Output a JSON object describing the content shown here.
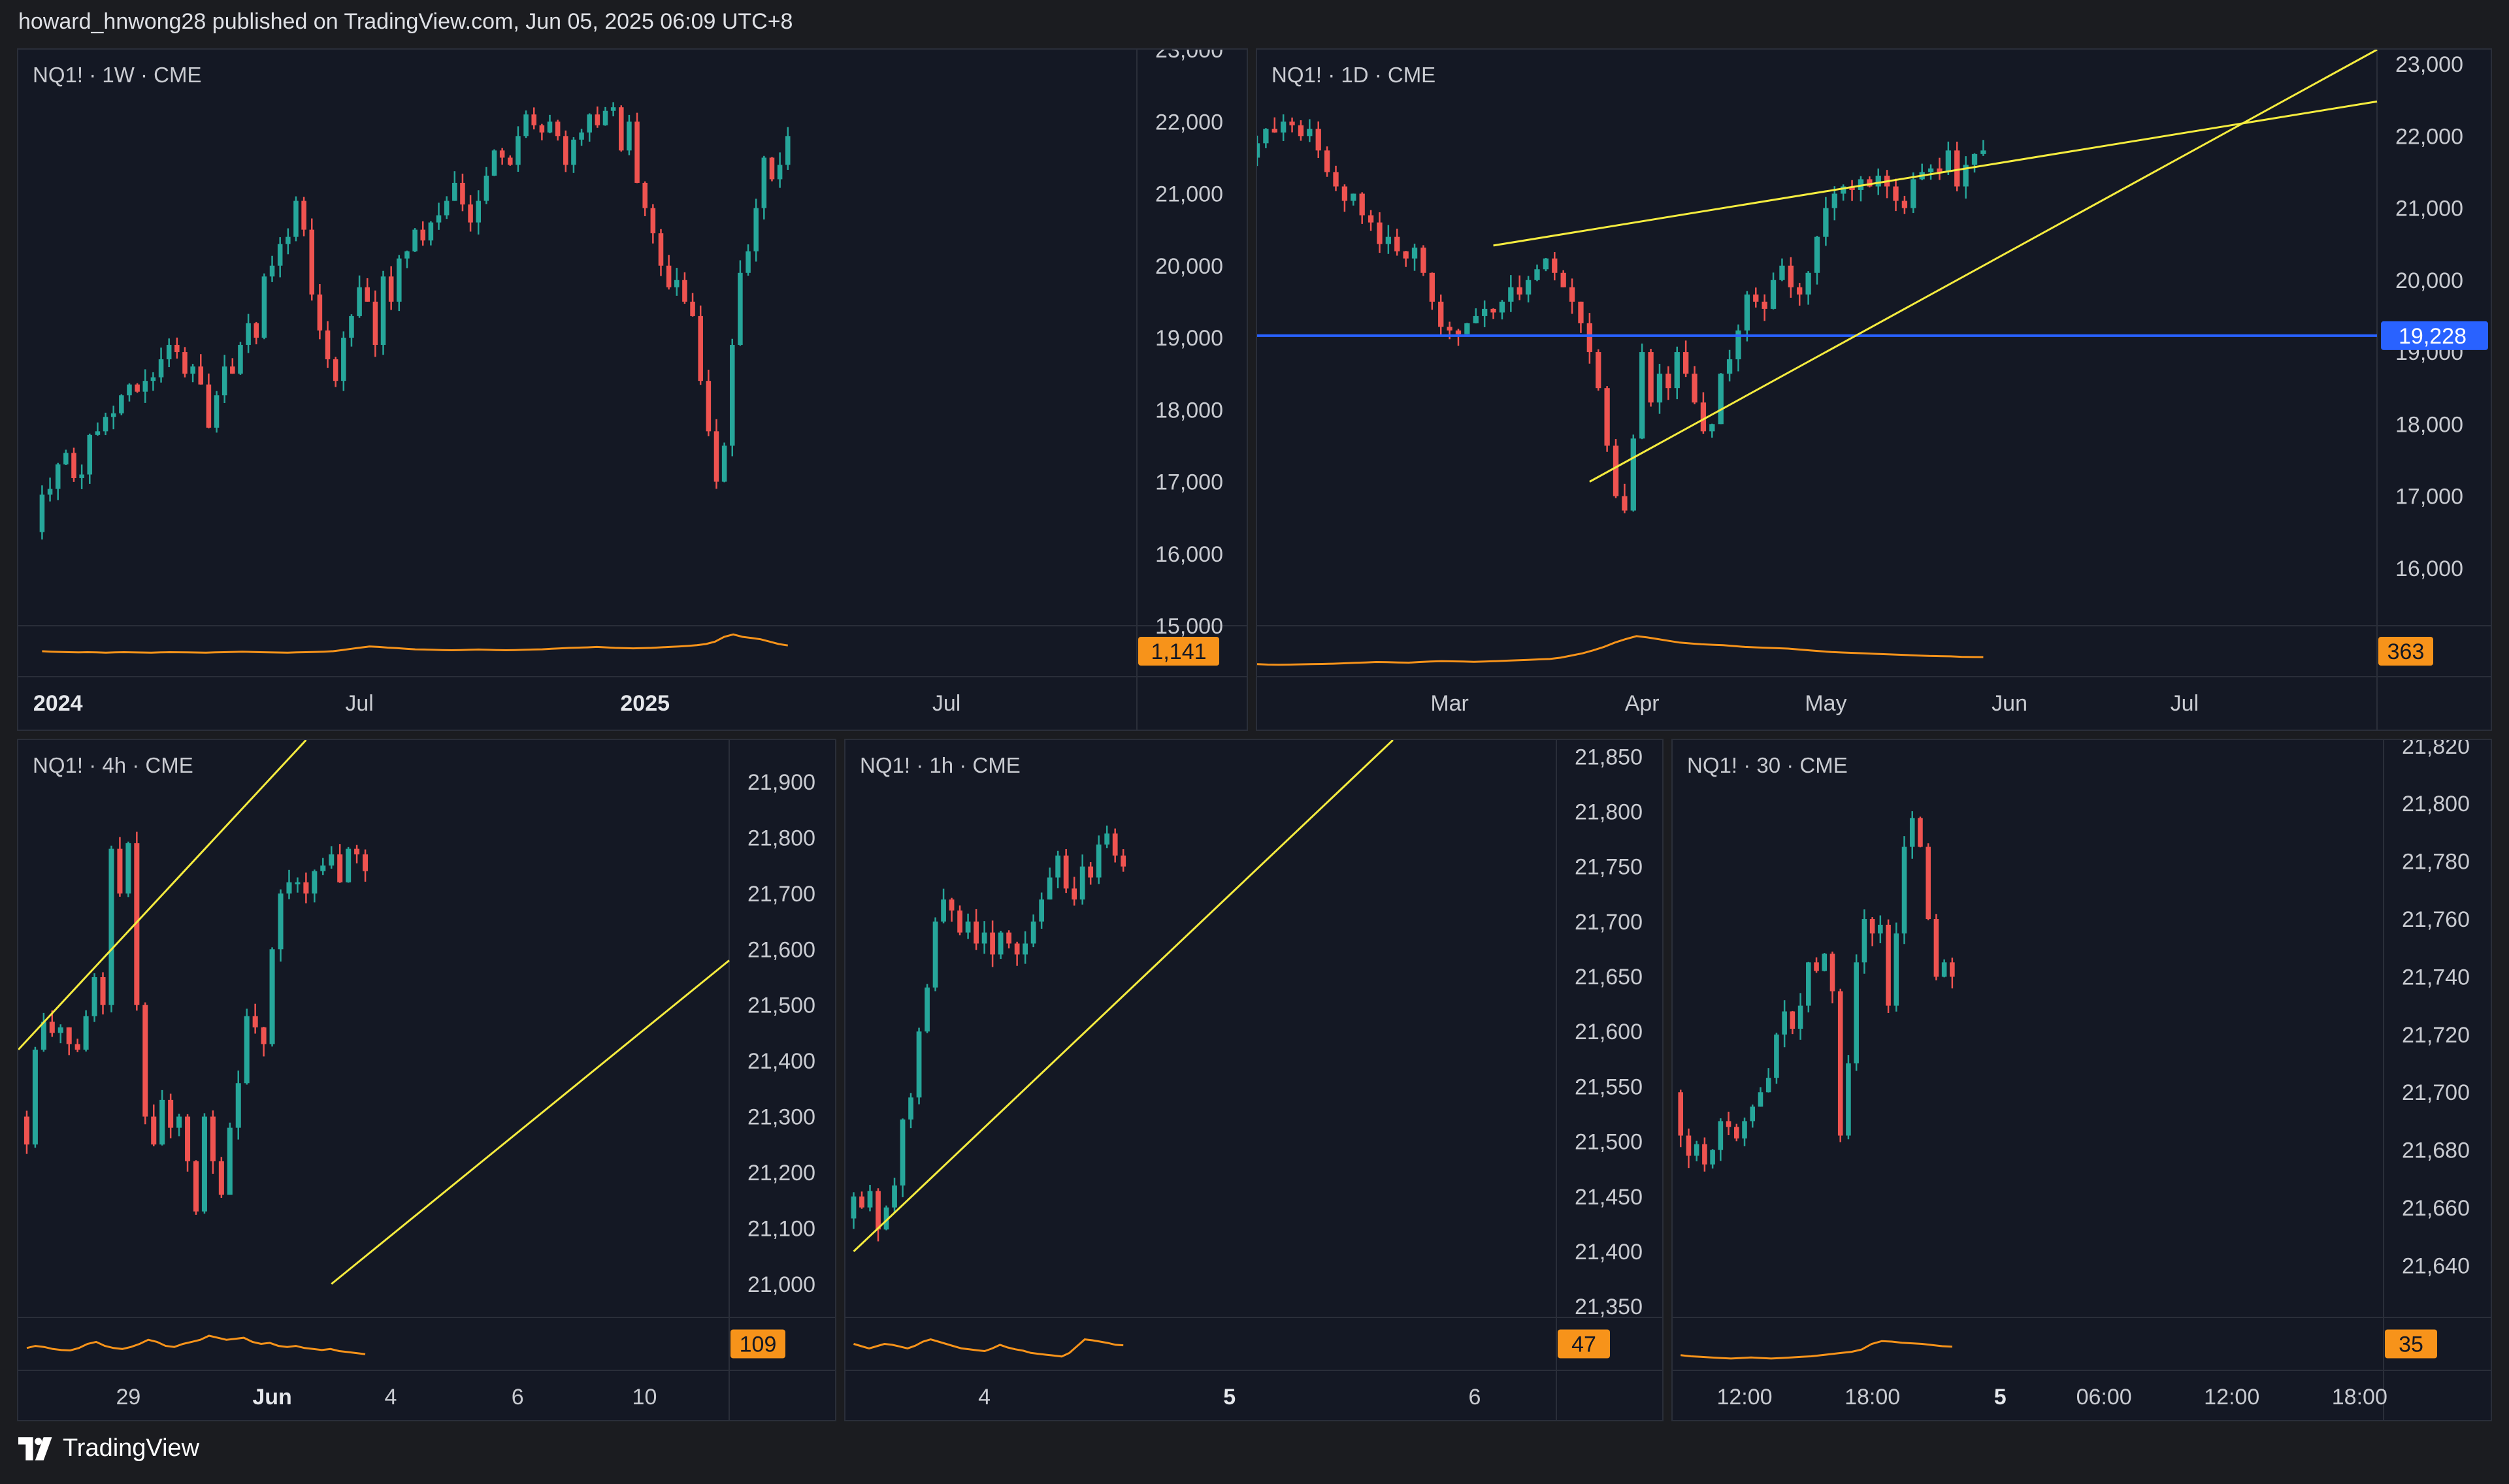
{
  "header": {
    "text": "howard_hnwong28 published on TradingView.com, Jun 05, 2025 06:09 UTC+8"
  },
  "footer": {
    "brand": "TradingView"
  },
  "colors": {
    "up": "#26a69a",
    "down": "#ef5350",
    "trendline": "#f5ec3f",
    "level": "#2962ff",
    "oscillator": "#f7931a",
    "background": "#141824",
    "border": "#2a2e39"
  },
  "chart_data": [
    {
      "type": "candlestick",
      "symbol": "NQ1!",
      "interval": "1W",
      "exchange": "CME",
      "legend": "NQ1! · 1W · CME",
      "y_axis": {
        "min": 15000,
        "max": 23000,
        "ticks": [
          23000,
          22000,
          21000,
          20000,
          19000,
          18000,
          17000,
          16000,
          15000
        ],
        "tick_labels": [
          "23,000",
          "22,000",
          "21,000",
          "20,000",
          "19,000",
          "18,000",
          "17,000",
          "16,000",
          "15,000"
        ]
      },
      "x_axis": {
        "labels": [
          "2024",
          "Jul",
          "2025",
          "Jul"
        ],
        "bold": [
          "2024",
          "2025"
        ],
        "positions": [
          2,
          40,
          76,
          114
        ]
      },
      "x_range": [
        -3,
        138
      ],
      "close_start": 16300,
      "closes": [
        16820,
        16900,
        17240,
        17400,
        17050,
        17100,
        17650,
        17700,
        17900,
        17950,
        18200,
        18350,
        18250,
        18400,
        18450,
        18700,
        18900,
        18800,
        18500,
        18600,
        18350,
        17750,
        18200,
        18600,
        18500,
        18900,
        19200,
        19000,
        19850,
        20000,
        20300,
        20400,
        20900,
        20500,
        19600,
        19100,
        18700,
        18400,
        19000,
        19300,
        19700,
        19500,
        18900,
        19850,
        19500,
        20100,
        20200,
        20500,
        20350,
        20600,
        20700,
        20900,
        21150,
        20850,
        20600,
        20900,
        21250,
        21600,
        21500,
        21400,
        21800,
        22100,
        21950,
        21850,
        22000,
        21800,
        21400,
        21750,
        21850,
        22100,
        21950,
        22150,
        22200,
        21600,
        22000,
        21150,
        20800,
        20450,
        20000,
        19700,
        19800,
        19500,
        19300,
        18400,
        17700,
        17000,
        17500,
        18900,
        19900,
        20200,
        20800,
        21500,
        21200,
        21400,
        21800
      ],
      "volume_indicator": {
        "value": "1,141",
        "min": 0,
        "max": 1800,
        "values": [
          900,
          880,
          870,
          860,
          850,
          860,
          850,
          840,
          850,
          860,
          850,
          845,
          840,
          850,
          860,
          855,
          850,
          845,
          840,
          850,
          860,
          870,
          880,
          870,
          860,
          850,
          845,
          840,
          850,
          860,
          870,
          880,
          900,
          950,
          1000,
          1050,
          1100,
          1080,
          1050,
          1030,
          1000,
          980,
          970,
          960,
          950,
          940,
          950,
          960,
          970,
          960,
          950,
          940,
          950,
          960,
          970,
          980,
          1000,
          1020,
          1040,
          1050,
          1060,
          1080,
          1060,
          1040,
          1030,
          1020,
          1030,
          1040,
          1060,
          1080,
          1100,
          1120,
          1150,
          1200,
          1300,
          1500,
          1600,
          1500,
          1450,
          1400,
          1300,
          1200,
          1141
        ]
      }
    },
    {
      "type": "candlestick",
      "symbol": "NQ1!",
      "interval": "1D",
      "exchange": "CME",
      "legend": "NQ1! · 1D · CME",
      "y_axis": {
        "min": 15200,
        "max": 23200,
        "ticks": [
          23000,
          22000,
          21000,
          20000,
          19000,
          18000,
          17000,
          16000
        ],
        "tick_labels": [
          "23,000",
          "22,000",
          "21,000",
          "20,000",
          "19,000",
          "18,000",
          "17,000",
          "16,000"
        ]
      },
      "x_axis": {
        "labels": [
          "Mar",
          "Apr",
          "May",
          "Jun",
          "Jul"
        ],
        "positions": [
          22,
          44,
          65,
          86,
          106
        ]
      },
      "x_range": [
        0,
        128
      ],
      "close_start": 21700,
      "closes": [
        21900,
        22100,
        22050,
        22200,
        22150,
        22000,
        22100,
        21800,
        21500,
        21300,
        21100,
        21200,
        20900,
        20800,
        20500,
        20600,
        20400,
        20300,
        20450,
        20100,
        19700,
        19350,
        19300,
        19250,
        19400,
        19500,
        19600,
        19550,
        19700,
        19900,
        19800,
        20000,
        20150,
        20300,
        20100,
        19900,
        19700,
        19400,
        19000,
        18500,
        17700,
        17000,
        16800,
        17800,
        19000,
        18300,
        18700,
        18500,
        19000,
        18700,
        18300,
        17900,
        18000,
        18700,
        18900,
        19300,
        19800,
        19700,
        19600,
        20000,
        20200,
        19900,
        19800,
        20100,
        20600,
        21000,
        21200,
        21300,
        21250,
        21400,
        21300,
        21450,
        21300,
        21100,
        21000,
        21400,
        21500,
        21550,
        21500,
        21800,
        21300,
        21600,
        21750,
        21800
      ],
      "annotations": [
        {
          "type": "horizontal_level",
          "value": 19228,
          "label": "19,228",
          "color": "#2962ff"
        },
        {
          "type": "trendline",
          "from": [
            27,
            20480
          ],
          "to": [
            128,
            22480
          ],
          "color": "#f5ec3f"
        },
        {
          "type": "trendline",
          "from": [
            38,
            17200
          ],
          "to": [
            128,
            23200
          ],
          "color": "#f5ec3f"
        }
      ],
      "volume_indicator": {
        "value": "363",
        "min": 0,
        "max": 1000,
        "values": [
          200,
          190,
          185,
          190,
          195,
          200,
          205,
          210,
          220,
          230,
          240,
          250,
          245,
          240,
          235,
          250,
          260,
          270,
          265,
          260,
          255,
          260,
          270,
          280,
          290,
          300,
          310,
          320,
          350,
          400,
          450,
          520,
          600,
          700,
          780,
          850,
          820,
          780,
          740,
          700,
          680,
          660,
          650,
          640,
          620,
          600,
          590,
          580,
          570,
          560,
          540,
          520,
          500,
          480,
          470,
          460,
          450,
          440,
          430,
          420,
          410,
          400,
          390,
          385,
          380,
          370,
          365,
          363
        ]
      }
    },
    {
      "type": "candlestick",
      "symbol": "NQ1!",
      "interval": "4h",
      "exchange": "CME",
      "legend": "NQ1! · 4h · CME",
      "y_axis": {
        "min": 20940,
        "max": 21975,
        "ticks": [
          21900,
          21800,
          21700,
          21600,
          21500,
          21400,
          21300,
          21200,
          21100,
          21000
        ],
        "tick_labels": [
          "21,900",
          "21,800",
          "21,700",
          "21,600",
          "21,500",
          "21,400",
          "21,300",
          "21,200",
          "21,100",
          "21,000"
        ]
      },
      "x_axis": {
        "labels": [
          "29",
          "Jun",
          "4",
          "6",
          "10"
        ],
        "bold": [
          "Jun"
        ],
        "positions": [
          12,
          29,
          43,
          58,
          73
        ]
      },
      "x_range": [
        -1,
        83
      ],
      "close_start": 21300,
      "closes": [
        21250,
        21420,
        21470,
        21450,
        21460,
        21430,
        21420,
        21480,
        21550,
        21500,
        21780,
        21700,
        21790,
        21500,
        21300,
        21250,
        21330,
        21280,
        21300,
        21220,
        21130,
        21300,
        21220,
        21160,
        21280,
        21360,
        21480,
        21460,
        21430,
        21600,
        21700,
        21720,
        21720,
        21700,
        21740,
        21750,
        21770,
        21720,
        21780,
        21770,
        21740
      ],
      "annotations": [
        {
          "type": "trendline",
          "from": [
            -1,
            21420
          ],
          "to": [
            33,
            21975
          ],
          "color": "#f5ec3f"
        },
        {
          "type": "trendline",
          "from": [
            36,
            21000
          ],
          "to": [
            83,
            21580
          ],
          "color": "#f5ec3f"
        }
      ],
      "volume_indicator": {
        "value": "109",
        "min": 0,
        "max": 220,
        "values": [
          90,
          100,
          95,
          85,
          80,
          78,
          90,
          110,
          120,
          100,
          90,
          85,
          95,
          110,
          130,
          120,
          100,
          95,
          110,
          120,
          130,
          150,
          140,
          130,
          135,
          140,
          120,
          110,
          115,
          100,
          95,
          100,
          90,
          85,
          80,
          85,
          75,
          70,
          65,
          60
        ]
      }
    },
    {
      "type": "candlestick",
      "symbol": "NQ1!",
      "interval": "1h",
      "exchange": "CME",
      "legend": "NQ1! · 1h · CME",
      "y_axis": {
        "min": 21340,
        "max": 21865,
        "ticks": [
          21850,
          21800,
          21750,
          21700,
          21650,
          21600,
          21550,
          21500,
          21450,
          21400,
          21350
        ],
        "tick_labels": [
          "21,850",
          "21,800",
          "21,750",
          "21,700",
          "21,650",
          "21,600",
          "21,550",
          "21,500",
          "21,450",
          "21,400",
          "21,350"
        ]
      },
      "x_axis": {
        "labels": [
          "4",
          "5",
          "6"
        ],
        "bold": [
          "5"
        ],
        "positions": [
          16,
          46,
          76
        ]
      },
      "x_range": [
        -1,
        86
      ],
      "close_start": 21430,
      "closes": [
        21450,
        21440,
        21455,
        21420,
        21440,
        21460,
        21520,
        21540,
        21600,
        21640,
        21700,
        21720,
        21710,
        21690,
        21700,
        21680,
        21690,
        21670,
        21690,
        21680,
        21670,
        21680,
        21700,
        21720,
        21740,
        21760,
        21730,
        21720,
        21750,
        21740,
        21770,
        21780,
        21760,
        21750
      ],
      "annotations": [
        {
          "type": "trendline",
          "from": [
            0,
            21400
          ],
          "to": [
            66,
            21865
          ],
          "color": "#f5ec3f"
        }
      ],
      "volume_indicator": {
        "value": "47",
        "min": 0,
        "max": 100,
        "values": [
          50,
          45,
          40,
          45,
          50,
          48,
          44,
          40,
          46,
          55,
          60,
          55,
          50,
          45,
          40,
          38,
          36,
          34,
          40,
          48,
          42,
          38,
          35,
          30,
          28,
          26,
          24,
          22,
          30,
          45,
          60,
          58,
          55,
          52,
          48,
          47
        ]
      }
    },
    {
      "type": "candlestick",
      "symbol": "NQ1!",
      "interval": "30",
      "exchange": "CME",
      "legend": "NQ1! · 30 · CME",
      "y_axis": {
        "min": 21622,
        "max": 21822,
        "ticks": [
          21820,
          21800,
          21780,
          21760,
          21740,
          21720,
          21700,
          21680,
          21660,
          21640
        ],
        "tick_labels": [
          "21,820",
          "21,800",
          "21,780",
          "21,760",
          "21,740",
          "21,720",
          "21,700",
          "21,680",
          "21,660",
          "21,640"
        ]
      },
      "x_axis": {
        "labels": [
          "12:00",
          "18:00",
          "5",
          "06:00",
          "12:00",
          "18:00"
        ],
        "bold": [
          "5"
        ],
        "positions": [
          8,
          24,
          40,
          53,
          69,
          85
        ]
      },
      "x_range": [
        -1,
        88
      ],
      "close_start": 21700,
      "closes": [
        21685,
        21678,
        21682,
        21675,
        21680,
        21690,
        21688,
        21684,
        21690,
        21695,
        21700,
        21705,
        21720,
        21728,
        21722,
        21730,
        21745,
        21742,
        21748,
        21735,
        21685,
        21710,
        21745,
        21760,
        21755,
        21758,
        21730,
        21755,
        21785,
        21795,
        21785,
        21760,
        21740,
        21745,
        21740
      ],
      "volume_indicator": {
        "value": "35",
        "min": 0,
        "max": 80,
        "values": [
          20,
          18,
          17,
          16,
          15,
          14,
          15,
          16,
          15,
          14,
          15,
          16,
          17,
          18,
          20,
          22,
          24,
          26,
          30,
          40,
          45,
          44,
          42,
          41,
          40,
          38,
          36,
          35
        ]
      }
    }
  ]
}
